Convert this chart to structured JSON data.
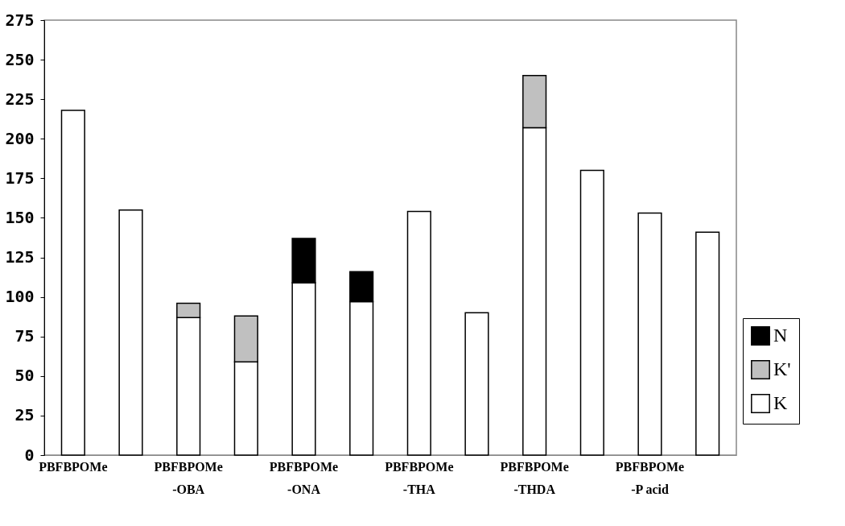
{
  "chart_data": {
    "type": "bar",
    "stacked": true,
    "categories": [
      "PBFBPOMe",
      null,
      "PBFBPOMe\n-OBA",
      null,
      "PBFBPOMe\n-ONA",
      null,
      "PBFBPOMe\n-THA",
      null,
      "PBFBPOMe\n-THDA",
      null,
      "PBFBPOMe\n-P acid",
      null
    ],
    "series": [
      {
        "name": "K",
        "color": "#ffffff",
        "values": [
          218,
          155,
          87,
          59,
          109,
          97,
          154,
          90,
          207,
          180,
          153,
          141
        ]
      },
      {
        "name": "K'",
        "color": "#c0c0c0",
        "values": [
          null,
          null,
          9,
          29,
          null,
          null,
          null,
          null,
          33,
          null,
          null,
          null
        ]
      },
      {
        "name": "N",
        "color": "#000000",
        "values": [
          null,
          null,
          null,
          null,
          28,
          19,
          null,
          null,
          null,
          null,
          null,
          null
        ]
      }
    ],
    "ylim": [
      0,
      275
    ],
    "yticks": [
      0,
      25,
      50,
      75,
      100,
      125,
      150,
      175,
      200,
      225,
      250,
      275
    ],
    "grid": false,
    "legend": "bottom right"
  }
}
